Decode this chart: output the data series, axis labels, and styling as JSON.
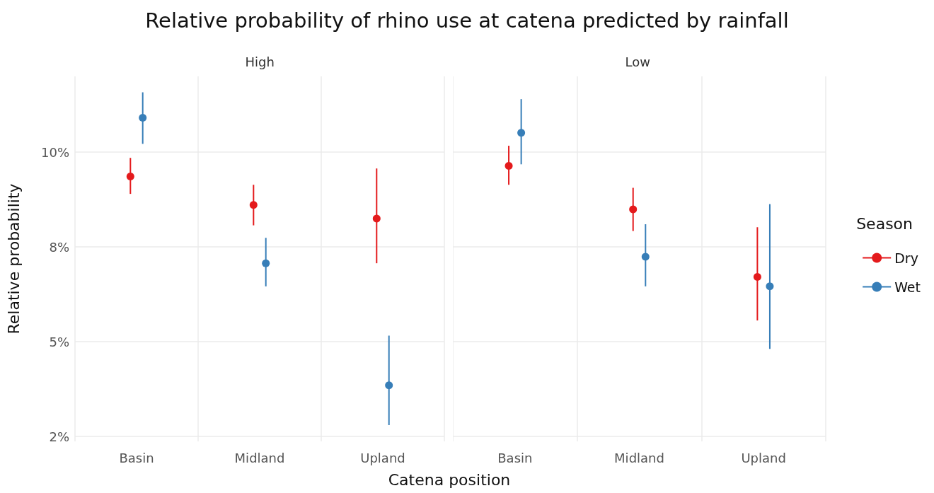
{
  "chart_data": [
    {
      "type": "scatter",
      "title": "Relative probability of rhino use at catena predicted by rainfall",
      "subtitle": "High",
      "xlabel": "Catena position",
      "ylabel": "Relative probability",
      "categories": [
        "Basin",
        "Midland",
        "Upland"
      ],
      "series": [
        {
          "color": "#e41a1c",
          "values": [
            9.36,
            8.61,
            8.25
          ],
          "errors": [
            [
              8.9,
              9.85
            ],
            [
              8.07,
              9.14
            ],
            [
              7.07,
              9.57
            ]
          ]
        },
        {
          "color": "#377eb8",
          "values": [
            10.91,
            7.07,
            3.85
          ],
          "errors": [
            [
              10.22,
              11.58
            ],
            [
              6.46,
              7.74
            ],
            [
              2.8,
              5.16
            ]
          ]
        }
      ],
      "ylim": [
        2.37,
        12.0
      ],
      "yticks": [
        {
          "value": 2.5,
          "label": "2%"
        },
        {
          "value": 5,
          "label": "5%"
        },
        {
          "value": 7.5,
          "label": "8%"
        },
        {
          "value": 10,
          "label": "10%"
        }
      ],
      "grid": true,
      "marker": "circle",
      "legend": false
    },
    {
      "type": "scatter",
      "subtitle": "Low",
      "legend_title": "Season",
      "categories": [
        "Basin",
        "Midland",
        "Upland"
      ],
      "series": [
        {
          "name": "Dry",
          "color": "#e41a1c",
          "values": [
            9.64,
            8.49,
            6.71
          ],
          "errors": [
            [
              9.14,
              10.17
            ],
            [
              7.92,
              9.06
            ],
            [
              5.56,
              8.02
            ]
          ]
        },
        {
          "name": "Wet",
          "color": "#377eb8",
          "values": [
            10.51,
            7.24,
            6.46
          ],
          "errors": [
            [
              9.68,
              11.4
            ],
            [
              6.46,
              8.1
            ],
            [
              4.81,
              8.63
            ]
          ]
        }
      ],
      "ylim": [
        2.37,
        12.0
      ],
      "yticks": [
        {
          "value": 2.5,
          "label": null
        },
        {
          "value": 5,
          "label": null
        },
        {
          "value": 7.5,
          "label": null
        },
        {
          "value": 10,
          "label": null
        }
      ],
      "grid": true,
      "marker": "circle",
      "legend": "right",
      "tick_labels": "x"
    }
  ]
}
